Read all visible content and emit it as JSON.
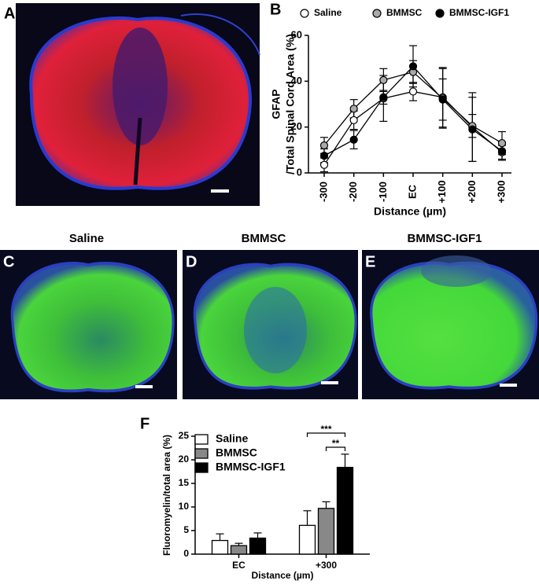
{
  "panel_labels": [
    "A",
    "B",
    "C",
    "D",
    "E",
    "F"
  ],
  "image_captions": [
    "Saline",
    "BMMSC",
    "BMMSC-IGF1"
  ],
  "chart_data": [
    {
      "type": "line",
      "ylabel": [
        "GFAP",
        "/Total Spinal Cord Area (%)"
      ],
      "xlabel": "Distance  (µm)",
      "categories": [
        "-300",
        "-200",
        "-100",
        "EC",
        "+100",
        "+200",
        "+300"
      ],
      "ylim": [
        0,
        60
      ],
      "yticks": [
        0,
        20,
        40,
        60
      ],
      "legend": "top",
      "series": [
        {
          "name": "Saline",
          "color": "#ffffff",
          "values": [
            3.5,
            23,
            32.5,
            35.5,
            33,
            20,
            9
          ],
          "errors": [
            3,
            4,
            10,
            4,
            13,
            15,
            3
          ]
        },
        {
          "name": "BMMSC",
          "color": "#aaaaaa",
          "values": [
            12,
            28,
            40.5,
            44,
            32.5,
            20.5,
            13
          ],
          "errors": [
            3.5,
            4,
            5,
            5,
            13,
            5,
            5
          ]
        },
        {
          "name": "BMMSC-IGF1",
          "color": "#000000",
          "values": [
            7.5,
            14.5,
            33,
            46.5,
            32,
            19,
            9.5
          ],
          "errors": [
            3,
            4,
            3,
            9,
            9,
            14,
            4
          ]
        }
      ]
    },
    {
      "type": "bar",
      "ylabel": "Fluoromyelin/total area (%)",
      "xlabel": "Distance  (µm)",
      "categories": [
        "EC",
        "+300"
      ],
      "ylim": [
        0,
        25
      ],
      "yticks": [
        0,
        5,
        10,
        15,
        20,
        25
      ],
      "legend": "top-left",
      "annotations": [
        "***",
        "**"
      ],
      "series": [
        {
          "name": "Saline",
          "color": "#ffffff",
          "values": [
            2.9,
            6.1
          ],
          "errors": [
            1.4,
            3.1
          ]
        },
        {
          "name": "BMMSC",
          "color": "#888888",
          "values": [
            1.8,
            9.7
          ],
          "errors": [
            0.5,
            1.4
          ]
        },
        {
          "name": "BMMSC-IGF1",
          "color": "#000000",
          "values": [
            3.4,
            18.4
          ],
          "errors": [
            1.1,
            2.8
          ]
        }
      ]
    }
  ]
}
